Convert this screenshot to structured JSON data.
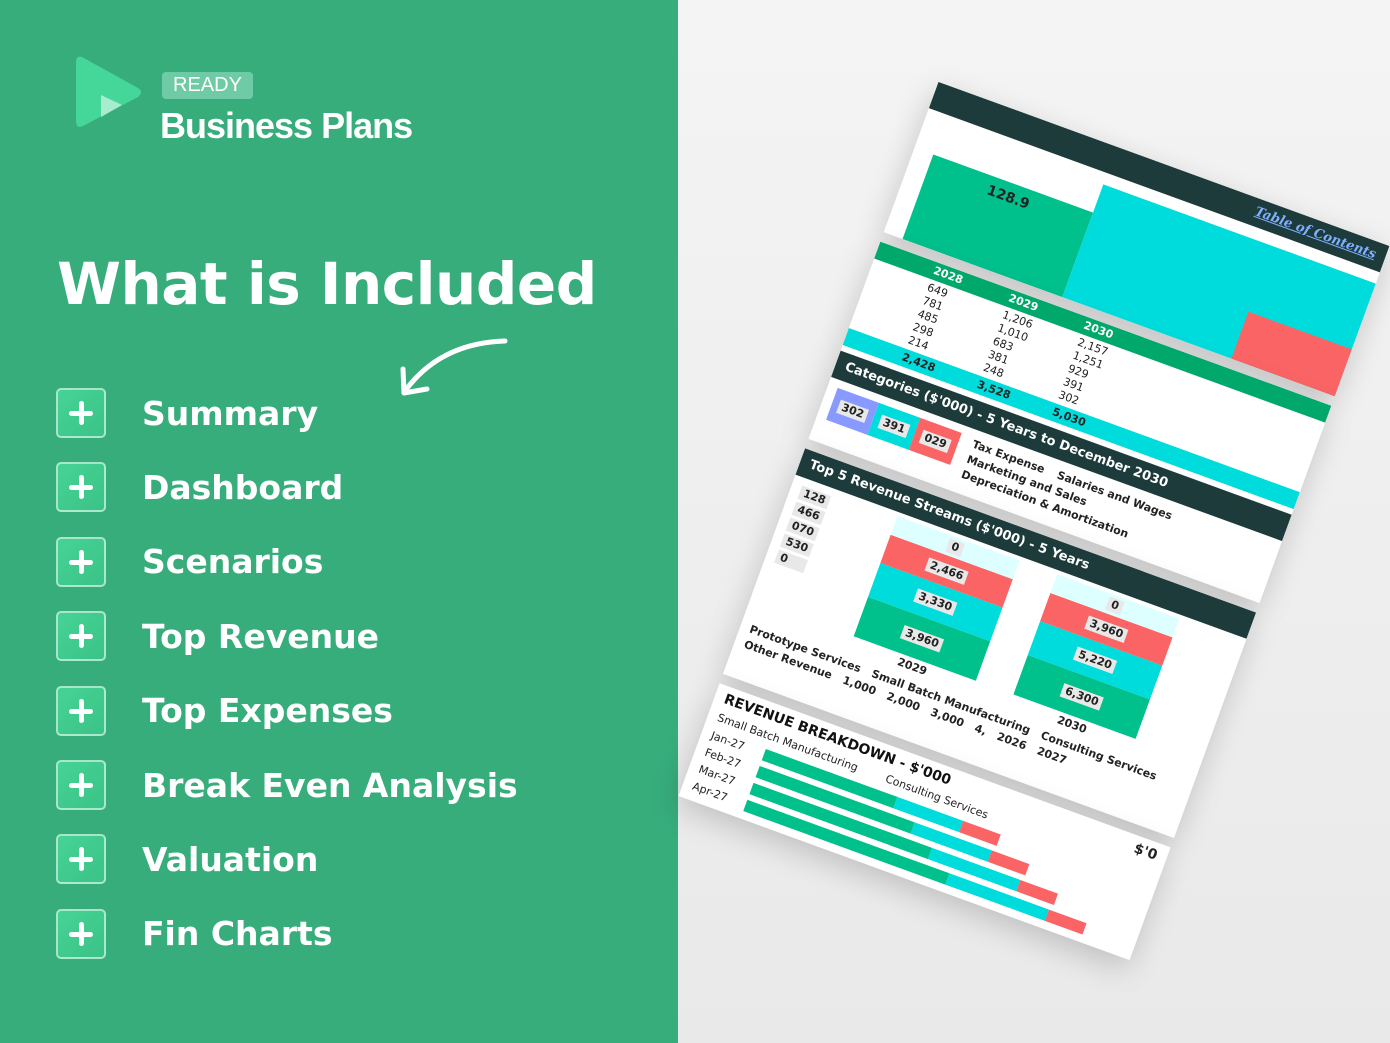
{
  "brand": {
    "badge": "READY",
    "name": "Business Plans"
  },
  "title": "What is Included",
  "items": [
    "Summary",
    "Dashboard",
    "Scenarios",
    "Top Revenue",
    "Top Expenses",
    "Break Even Analysis",
    "Valuation",
    "Fin Charts"
  ],
  "colors": {
    "background": "#37ad7c",
    "green": "#00c08b",
    "cyan": "#00dcdc",
    "red": "#fa6464",
    "dark": "#1e3b3b"
  },
  "preview": {
    "top_chart": {
      "label": "128.9",
      "link": "Table of Contents"
    },
    "table": {
      "years": [
        "2028",
        "2029",
        "2030"
      ],
      "rows": [
        [
          "649",
          "1,206",
          "2,157"
        ],
        [
          "781",
          "1,010",
          "1,251"
        ],
        [
          "485",
          "683",
          "929"
        ],
        [
          "298",
          "381",
          "391"
        ],
        [
          "214",
          "248",
          "302"
        ]
      ],
      "totals": [
        "2,428",
        "3,528",
        "5,030"
      ],
      "title": "Categories ($'000) - 5 Years to December 2030",
      "legend": [
        "Tax Expense",
        "Salaries and Wages",
        "Marketing and Sales",
        "Depreciation & Amortization"
      ],
      "labels": [
        "302",
        "391",
        "029"
      ]
    },
    "top_revenue": {
      "title": "Top 5 Revenue Streams ($'000) - 5 Years",
      "years": [
        "2029",
        "2030"
      ],
      "stacks": [
        [
          "3,960",
          "3,330",
          "2,466",
          "0"
        ],
        [
          "6,300",
          "5,220",
          "3,960",
          "0"
        ]
      ],
      "partial": [
        "128",
        "466",
        "070",
        "530",
        "0"
      ],
      "legend": [
        "Prototype Services",
        "Small Batch Manufacturing",
        "Consulting Services",
        "Other Revenue"
      ],
      "axis": [
        "1,000",
        "2,000",
        "3,000",
        "4,"
      ],
      "axis_years": [
        "2026",
        "2027"
      ]
    },
    "breakdown": {
      "title": "REVENUE BREAKDOWN - $'000",
      "legend": [
        "Small Batch Manufacturing",
        "Consulting Services"
      ],
      "months": [
        "Jan-27",
        "Feb-27",
        "Mar-27",
        "Apr-27"
      ],
      "unit": "$'0"
    }
  }
}
